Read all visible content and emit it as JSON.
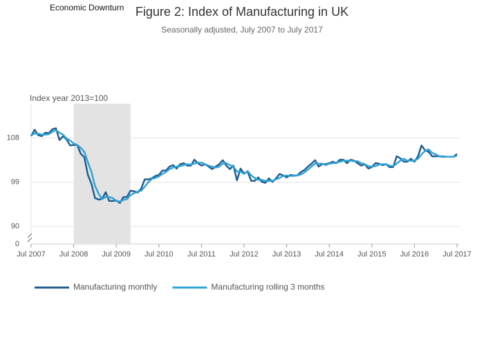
{
  "chart_data": {
    "type": "line",
    "title": "Figure 2: Index of Manufacturing in UK",
    "subtitle": "Seasonally adjusted, July 2007 to July 2017",
    "y_label": "Index year 2013=100",
    "shade": {
      "label": "Economic Downturn",
      "from": "2008-07",
      "to": "2009-11",
      "color": "#e3e3e3"
    },
    "x": [
      "2007-07",
      "2007-08",
      "2007-09",
      "2007-10",
      "2007-11",
      "2007-12",
      "2008-01",
      "2008-02",
      "2008-03",
      "2008-04",
      "2008-05",
      "2008-06",
      "2008-07",
      "2008-08",
      "2008-09",
      "2008-10",
      "2008-11",
      "2008-12",
      "2009-01",
      "2009-02",
      "2009-03",
      "2009-04",
      "2009-05",
      "2009-06",
      "2009-07",
      "2009-08",
      "2009-09",
      "2009-10",
      "2009-11",
      "2009-12",
      "2010-01",
      "2010-02",
      "2010-03",
      "2010-04",
      "2010-05",
      "2010-06",
      "2010-07",
      "2010-08",
      "2010-09",
      "2010-10",
      "2010-11",
      "2010-12",
      "2011-01",
      "2011-02",
      "2011-03",
      "2011-04",
      "2011-05",
      "2011-06",
      "2011-07",
      "2011-08",
      "2011-09",
      "2011-10",
      "2011-11",
      "2011-12",
      "2012-01",
      "2012-02",
      "2012-03",
      "2012-04",
      "2012-05",
      "2012-06",
      "2012-07",
      "2012-08",
      "2012-09",
      "2012-10",
      "2012-11",
      "2012-12",
      "2013-01",
      "2013-02",
      "2013-03",
      "2013-04",
      "2013-05",
      "2013-06",
      "2013-07",
      "2013-08",
      "2013-09",
      "2013-10",
      "2013-11",
      "2013-12",
      "2014-01",
      "2014-02",
      "2014-03",
      "2014-04",
      "2014-05",
      "2014-06",
      "2014-07",
      "2014-08",
      "2014-09",
      "2014-10",
      "2014-11",
      "2014-12",
      "2015-01",
      "2015-02",
      "2015-03",
      "2015-04",
      "2015-05",
      "2015-06",
      "2015-07",
      "2015-08",
      "2015-09",
      "2015-10",
      "2015-11",
      "2015-12",
      "2016-01",
      "2016-02",
      "2016-03",
      "2016-04",
      "2016-05",
      "2016-06",
      "2016-07",
      "2016-08",
      "2016-09",
      "2016-10",
      "2016-11",
      "2016-12",
      "2017-01",
      "2017-02",
      "2017-03",
      "2017-04",
      "2017-05",
      "2017-06",
      "2017-07"
    ],
    "series": [
      {
        "name": "Manufacturing monthly",
        "color": "#245d8c",
        "values": [
          108.4,
          109.7,
          108.6,
          108.4,
          109.1,
          109,
          109.8,
          110,
          107.6,
          108.4,
          107.7,
          106.5,
          106.6,
          106.6,
          104.8,
          104.1,
          100.5,
          98.7,
          95.8,
          95.5,
          95.6,
          97,
          95.2,
          95.2,
          95.3,
          94.8,
          96,
          96,
          97.3,
          97.2,
          96.9,
          97.7,
          99.6,
          99.6,
          99.8,
          100.3,
          100.5,
          101.4,
          101.4,
          102.2,
          102.5,
          101.8,
          102.7,
          102.9,
          102.4,
          102.4,
          103.6,
          102.9,
          102.4,
          102.7,
          102.2,
          101.7,
          102.2,
          102.7,
          103.5,
          102.4,
          101.7,
          102.4,
          99.4,
          101.8,
          100.8,
          101.2,
          99.3,
          99.3,
          100,
          99.1,
          98.9,
          99.8,
          99.1,
          99.8,
          100.7,
          100.4,
          100,
          100.5,
          100.4,
          100.4,
          101.1,
          101.5,
          102.2,
          102.8,
          103.5,
          102.2,
          102.7,
          102.7,
          102.9,
          103.2,
          102.9,
          103.6,
          103.6,
          102.9,
          103.6,
          103.4,
          102.9,
          102.4,
          102.7,
          101.8,
          102.1,
          102.9,
          102.8,
          102.5,
          102.7,
          102.1,
          102.1,
          104.3,
          103.9,
          103.2,
          103.2,
          103.8,
          103.2,
          104.3,
          106.5,
          105.5,
          105.2,
          104.3,
          104.3,
          104.3,
          104.2,
          104.2,
          104.2,
          104.2,
          104.8
        ]
      },
      {
        "name": "Manufacturing rolling 3 months",
        "color": "#2ea3d6",
        "values": [
          108.6,
          108.9,
          108.9,
          108.7,
          108.7,
          108.8,
          109.3,
          109.6,
          109.1,
          108.7,
          107.9,
          107.5,
          106.9,
          106.6,
          106,
          105.2,
          103.1,
          101.1,
          98.3,
          96.7,
          95.6,
          96,
          96,
          95.8,
          95.2,
          95.1,
          95.4,
          95.6,
          96.4,
          96.8,
          97.1,
          97.3,
          98.1,
          99,
          99.7,
          99.9,
          100.2,
          100.7,
          101.1,
          101.7,
          102,
          102.2,
          102.3,
          102.5,
          102.7,
          102.6,
          102.8,
          103,
          103,
          102.7,
          102.4,
          102.2,
          102,
          102.2,
          102.8,
          102.9,
          102.5,
          102.2,
          101.2,
          101.2,
          100.7,
          101.3,
          100.4,
          99.9,
          99.5,
          99.5,
          99.3,
          99.3,
          99.3,
          99.6,
          99.9,
          100.3,
          100.4,
          100.3,
          100.3,
          100.4,
          100.6,
          101,
          101.6,
          102.2,
          102.8,
          102.8,
          102.8,
          102.5,
          102.8,
          102.9,
          103,
          103.2,
          103.4,
          103.4,
          103.4,
          103.3,
          103.3,
          102.9,
          102.7,
          102.3,
          102.2,
          102.3,
          102.6,
          102.7,
          102.7,
          102.4,
          102.3,
          102.8,
          103.4,
          103.8,
          103.4,
          103.4,
          103.4,
          103.8,
          104.7,
          105.4,
          105.7,
          105,
          104.7,
          104.3,
          104.3,
          104.2,
          104.2,
          104.2,
          104.4
        ]
      }
    ],
    "xlim": [
      "2007-07",
      "2017-07"
    ],
    "xticks": [
      {
        "value": "2007-07",
        "label": "Jul 2007"
      },
      {
        "value": "2008-07",
        "label": "Jul 2008"
      },
      {
        "value": "2009-07",
        "label": "Jul 2009"
      },
      {
        "value": "2010-07",
        "label": "Jul 2010"
      },
      {
        "value": "2011-07",
        "label": "Jul 2011"
      },
      {
        "value": "2012-07",
        "label": "Jul 2012"
      },
      {
        "value": "2013-07",
        "label": "Jul 2013"
      },
      {
        "value": "2014-07",
        "label": "Jul 2014"
      },
      {
        "value": "2015-07",
        "label": "Jul 2015"
      },
      {
        "value": "2016-07",
        "label": "Jul 2016"
      },
      {
        "value": "2017-07",
        "label": "Jul 2017"
      }
    ],
    "ylim": [
      0,
      115
    ],
    "ybreak": [
      0,
      88
    ],
    "yticks": [
      0,
      90,
      99,
      108
    ],
    "grid": true,
    "legend": "bottom"
  }
}
